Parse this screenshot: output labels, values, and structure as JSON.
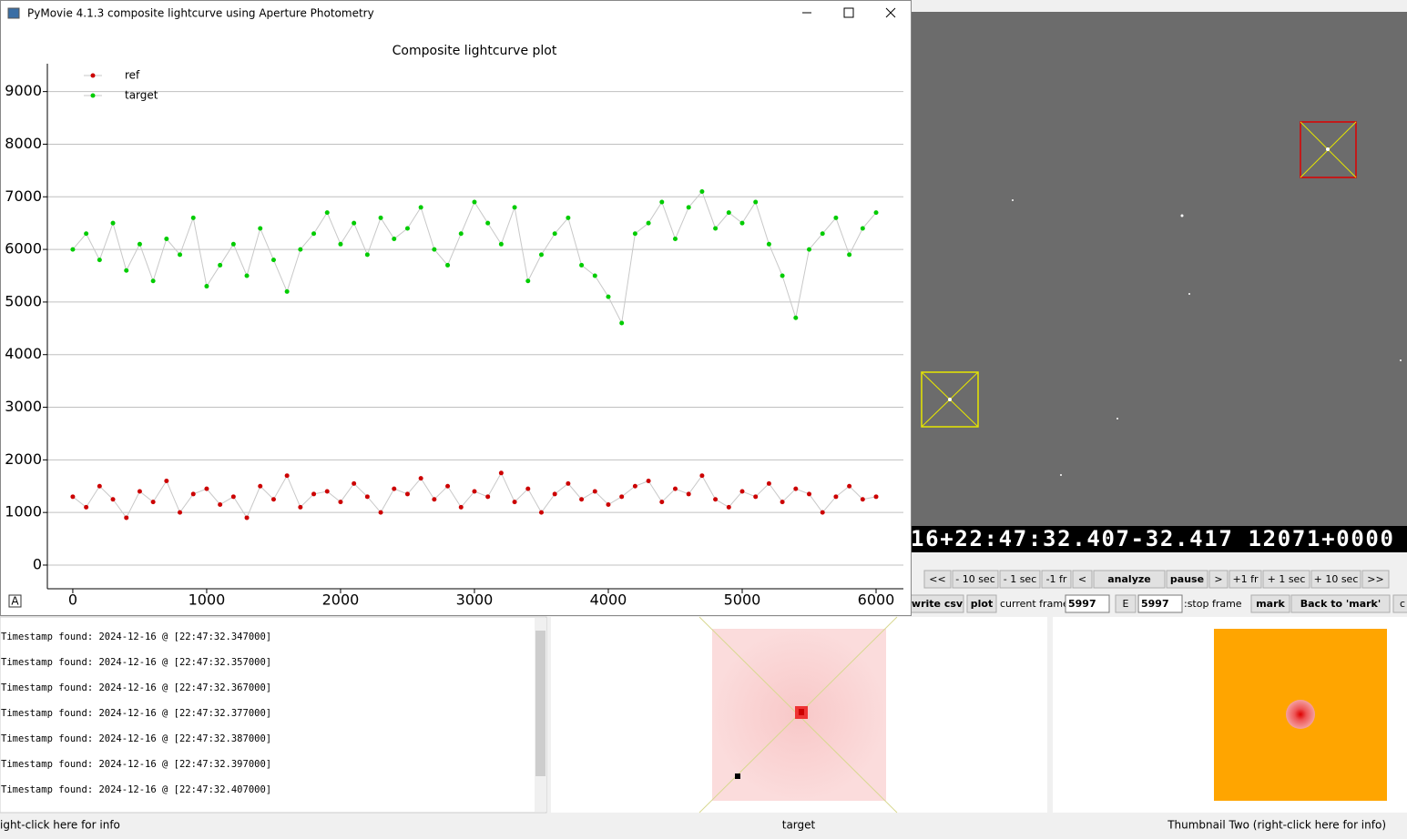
{
  "window": {
    "title": "PyMovie 4.1.3 composite lightcurve using Aperture Photometry"
  },
  "chart_data": {
    "type": "line",
    "title": "Composite lightcurve plot",
    "x": [
      0,
      100,
      200,
      300,
      400,
      500,
      600,
      700,
      800,
      900,
      1000,
      1100,
      1200,
      1300,
      1400,
      1500,
      1600,
      1700,
      1800,
      1900,
      2000,
      2100,
      2200,
      2300,
      2400,
      2500,
      2600,
      2700,
      2800,
      2900,
      3000,
      3100,
      3200,
      3300,
      3400,
      3500,
      3600,
      3700,
      3800,
      3900,
      4000,
      4100,
      4200,
      4300,
      4400,
      4500,
      4600,
      4700,
      4800,
      4900,
      5000,
      5100,
      5200,
      5300,
      5400,
      5500,
      5600,
      5700,
      5800,
      5900,
      6000
    ],
    "series": [
      {
        "name": "ref",
        "color": "#cc0000",
        "values": [
          1300,
          1100,
          1500,
          1250,
          900,
          1400,
          1200,
          1600,
          1000,
          1350,
          1450,
          1150,
          1300,
          900,
          1500,
          1250,
          1700,
          1100,
          1350,
          1400,
          1200,
          1550,
          1300,
          1000,
          1450,
          1350,
          1650,
          1250,
          1500,
          1100,
          1400,
          1300,
          1750,
          1200,
          1450,
          1000,
          1350,
          1550,
          1250,
          1400,
          1150,
          1300,
          1500,
          1600,
          1200,
          1450,
          1350,
          1700,
          1250,
          1100,
          1400,
          1300,
          1550,
          1200,
          1450,
          1350,
          1000,
          1300,
          1500,
          1250,
          1300
        ]
      },
      {
        "name": "target",
        "color": "#00cc00",
        "values": [
          6000,
          6300,
          5800,
          6500,
          5600,
          6100,
          5400,
          6200,
          5900,
          6600,
          5300,
          5700,
          6100,
          5500,
          6400,
          5800,
          5200,
          6000,
          6300,
          6700,
          6100,
          6500,
          5900,
          6600,
          6200,
          6400,
          6800,
          6000,
          5700,
          6300,
          6900,
          6500,
          6100,
          6800,
          5400,
          5900,
          6300,
          6600,
          5700,
          5500,
          5100,
          4600,
          6300,
          6500,
          6900,
          6200,
          6800,
          7100,
          6400,
          6700,
          6500,
          6900,
          6100,
          5500,
          4700,
          6000,
          6300,
          6600,
          5900,
          6400,
          6700
        ]
      }
    ],
    "line_color": "#c8c8c8",
    "xlim": [
      -190,
      6204
    ],
    "ylim": [
      -450,
      9530
    ],
    "xticks": [
      0,
      1000,
      2000,
      3000,
      4000,
      5000,
      6000
    ],
    "yticks": [
      0,
      1000,
      2000,
      3000,
      4000,
      5000,
      6000,
      7000,
      8000,
      9000
    ],
    "grid": "y",
    "legend": "upper-left"
  },
  "video": {
    "timestamp_overlay": "16+22:47:32.407-32.417 12071+0000"
  },
  "controls": {
    "row1": [
      "<<",
      "- 10 sec",
      "- 1 sec",
      "-1 fr",
      "<",
      "analyze",
      "pause",
      ">",
      "+1 fr",
      "+ 1 sec",
      "+ 10 sec",
      ">>"
    ],
    "row2": [
      "write csv",
      "plot",
      "current frame:",
      "5997",
      "E",
      "5997",
      ":stop frame",
      "mark",
      "Back to 'mark'",
      "c"
    ]
  },
  "log": {
    "lines": [
      "Timestamp found: 2024-12-16 @ [22:47:32.347000]",
      "Timestamp found: 2024-12-16 @ [22:47:32.357000]",
      "Timestamp found: 2024-12-16 @ [22:47:32.367000]",
      "Timestamp found: 2024-12-16 @ [22:47:32.377000]",
      "Timestamp found: 2024-12-16 @ [22:47:32.387000]",
      "Timestamp found: 2024-12-16 @ [22:47:32.397000]",
      "Timestamp found: 2024-12-16 @ [22:47:32.407000]"
    ]
  },
  "status_bar": {
    "left": "ight-click here for info",
    "center": "target",
    "right": "Thumbnail Two (right-click here for info)"
  }
}
